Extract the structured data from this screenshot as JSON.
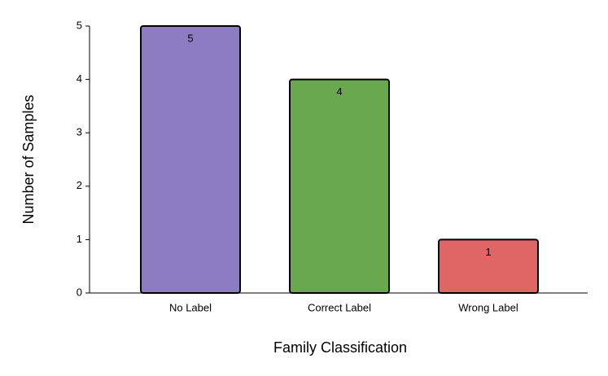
{
  "chart_data": {
    "type": "bar",
    "x_label": "Family Classification",
    "y_label": "Number of Samples",
    "categories": [
      "No Label",
      "Correct Label",
      "Wrong Label"
    ],
    "values": [
      5,
      4,
      1
    ],
    "colors": [
      "#8c7dc2",
      "#6aa84f",
      "#e06666"
    ],
    "ylim": [
      0,
      5
    ],
    "yticks": [
      0,
      1,
      2,
      3,
      4,
      5
    ],
    "grid": false
  }
}
